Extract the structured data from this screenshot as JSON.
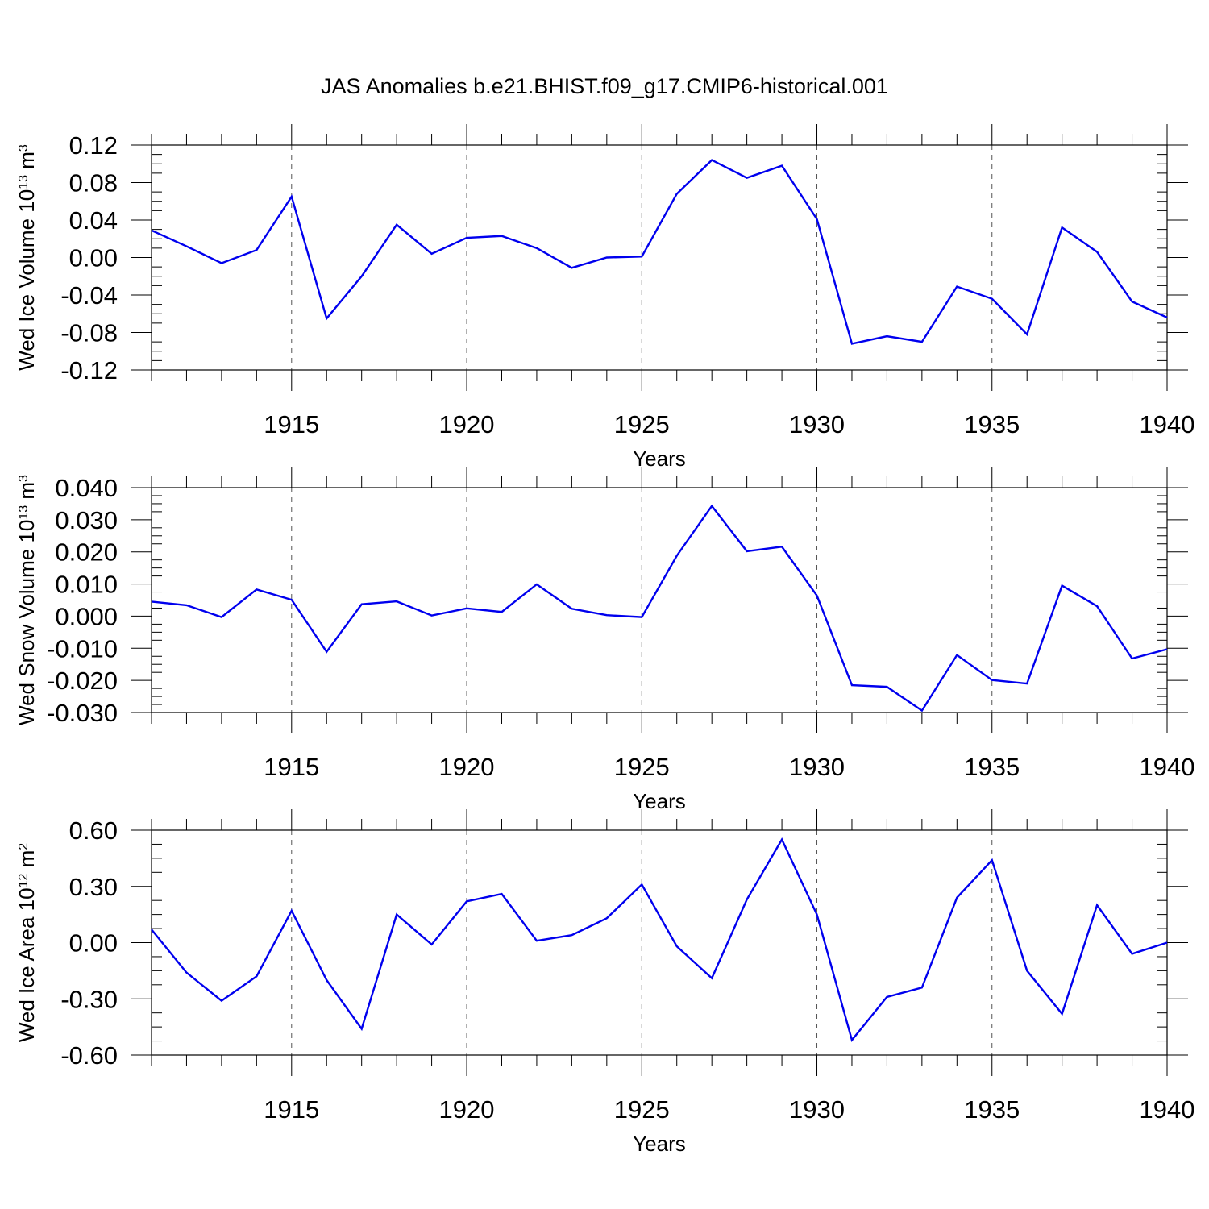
{
  "title": "JAS Anomalies b.e21.BHIST.f09_g17.CMIP6-historical.001",
  "colors": {
    "line": "#0000ee",
    "axis": "#000000",
    "grid": "#555555"
  },
  "chart_data": [
    {
      "type": "line",
      "ylabel": {
        "prefix": "Wed Ice Volume 10",
        "exp": "13",
        "unit": " m",
        "unit_exp": "3"
      },
      "xlabel": "Years",
      "xlim": [
        1911,
        1940
      ],
      "ylim": [
        -0.12,
        0.12
      ],
      "yticks": [
        {
          "v": 0.12,
          "label": "0.12"
        },
        {
          "v": 0.08,
          "label": "0.08"
        },
        {
          "v": 0.04,
          "label": "0.04"
        },
        {
          "v": 0.0,
          "label": "0.00"
        },
        {
          "v": -0.04,
          "label": "-0.04"
        },
        {
          "v": -0.08,
          "label": "-0.08"
        },
        {
          "v": -0.12,
          "label": "-0.12"
        }
      ],
      "xticks": [
        {
          "v": 1915,
          "label": "1915"
        },
        {
          "v": 1920,
          "label": "1920"
        },
        {
          "v": 1925,
          "label": "1925"
        },
        {
          "v": 1930,
          "label": "1930"
        },
        {
          "v": 1935,
          "label": "1935"
        },
        {
          "v": 1940,
          "label": "1940"
        }
      ],
      "series": [
        {
          "name": "Wed Ice Volume",
          "x": [
            1911,
            1912,
            1913,
            1914,
            1915,
            1916,
            1917,
            1918,
            1919,
            1920,
            1921,
            1922,
            1923,
            1924,
            1925,
            1926,
            1927,
            1928,
            1929,
            1930,
            1931,
            1932,
            1933,
            1934,
            1935,
            1936,
            1937,
            1938,
            1939,
            1940
          ],
          "values": [
            0.029,
            0.012,
            -0.006,
            0.008,
            0.065,
            -0.065,
            -0.02,
            0.035,
            0.004,
            0.021,
            0.023,
            0.01,
            -0.011,
            0.0,
            0.001,
            0.068,
            0.104,
            0.085,
            0.098,
            0.041,
            -0.092,
            -0.084,
            -0.09,
            -0.031,
            -0.044,
            -0.082,
            0.032,
            0.006,
            -0.047,
            -0.064
          ]
        }
      ]
    },
    {
      "type": "line",
      "ylabel": {
        "prefix": "Wed Snow Volume 10",
        "exp": "13",
        "unit": " m",
        "unit_exp": "3"
      },
      "xlabel": "Years",
      "xlim": [
        1911,
        1940
      ],
      "ylim": [
        -0.03,
        0.04
      ],
      "yticks": [
        {
          "v": 0.04,
          "label": "0.040"
        },
        {
          "v": 0.03,
          "label": "0.030"
        },
        {
          "v": 0.02,
          "label": "0.020"
        },
        {
          "v": 0.01,
          "label": "0.010"
        },
        {
          "v": 0.0,
          "label": "0.000"
        },
        {
          "v": -0.01,
          "label": "-0.010"
        },
        {
          "v": -0.02,
          "label": "-0.020"
        },
        {
          "v": -0.03,
          "label": "-0.030"
        }
      ],
      "xticks": [
        {
          "v": 1915,
          "label": "1915"
        },
        {
          "v": 1920,
          "label": "1920"
        },
        {
          "v": 1925,
          "label": "1925"
        },
        {
          "v": 1930,
          "label": "1930"
        },
        {
          "v": 1935,
          "label": "1935"
        },
        {
          "v": 1940,
          "label": "1940"
        }
      ],
      "series": [
        {
          "name": "Wed Snow Volume",
          "x": [
            1911,
            1912,
            1913,
            1914,
            1915,
            1916,
            1917,
            1918,
            1919,
            1920,
            1921,
            1922,
            1923,
            1924,
            1925,
            1926,
            1927,
            1928,
            1929,
            1930,
            1931,
            1932,
            1933,
            1934,
            1935,
            1936,
            1937,
            1938,
            1939,
            1940
          ],
          "values": [
            0.0045,
            0.0034,
            -0.0003,
            0.0083,
            0.0051,
            -0.0111,
            0.0037,
            0.0046,
            0.0002,
            0.0024,
            0.0013,
            0.0099,
            0.0023,
            0.0003,
            -0.0003,
            0.0188,
            0.0343,
            0.0202,
            0.0216,
            0.0064,
            -0.0215,
            -0.022,
            -0.0294,
            -0.0121,
            -0.0199,
            -0.021,
            0.0095,
            0.0031,
            -0.0132,
            -0.0103
          ]
        }
      ]
    },
    {
      "type": "line",
      "ylabel": {
        "prefix": "Wed Ice Area 10",
        "exp": "12",
        "unit": " m",
        "unit_exp": "2"
      },
      "xlabel": "Years",
      "xlim": [
        1911,
        1940
      ],
      "ylim": [
        -0.6,
        0.6
      ],
      "yticks": [
        {
          "v": 0.6,
          "label": "0.60"
        },
        {
          "v": 0.3,
          "label": "0.30"
        },
        {
          "v": 0.0,
          "label": "0.00"
        },
        {
          "v": -0.3,
          "label": "-0.30"
        },
        {
          "v": -0.6,
          "label": "-0.60"
        }
      ],
      "xticks": [
        {
          "v": 1915,
          "label": "1915"
        },
        {
          "v": 1920,
          "label": "1920"
        },
        {
          "v": 1925,
          "label": "1925"
        },
        {
          "v": 1930,
          "label": "1930"
        },
        {
          "v": 1935,
          "label": "1935"
        },
        {
          "v": 1940,
          "label": "1940"
        }
      ],
      "series": [
        {
          "name": "Wed Ice Area",
          "x": [
            1911,
            1912,
            1913,
            1914,
            1915,
            1916,
            1917,
            1918,
            1919,
            1920,
            1921,
            1922,
            1923,
            1924,
            1925,
            1926,
            1927,
            1928,
            1929,
            1930,
            1931,
            1932,
            1933,
            1934,
            1935,
            1936,
            1937,
            1938,
            1939,
            1940
          ],
          "values": [
            0.07,
            -0.16,
            -0.31,
            -0.18,
            0.17,
            -0.2,
            -0.46,
            0.15,
            -0.01,
            0.22,
            0.26,
            0.01,
            0.04,
            0.13,
            0.31,
            -0.02,
            -0.19,
            0.23,
            0.55,
            0.15,
            -0.52,
            -0.29,
            -0.24,
            0.24,
            0.44,
            -0.15,
            -0.38,
            0.2,
            -0.06,
            0.0
          ]
        }
      ]
    }
  ]
}
